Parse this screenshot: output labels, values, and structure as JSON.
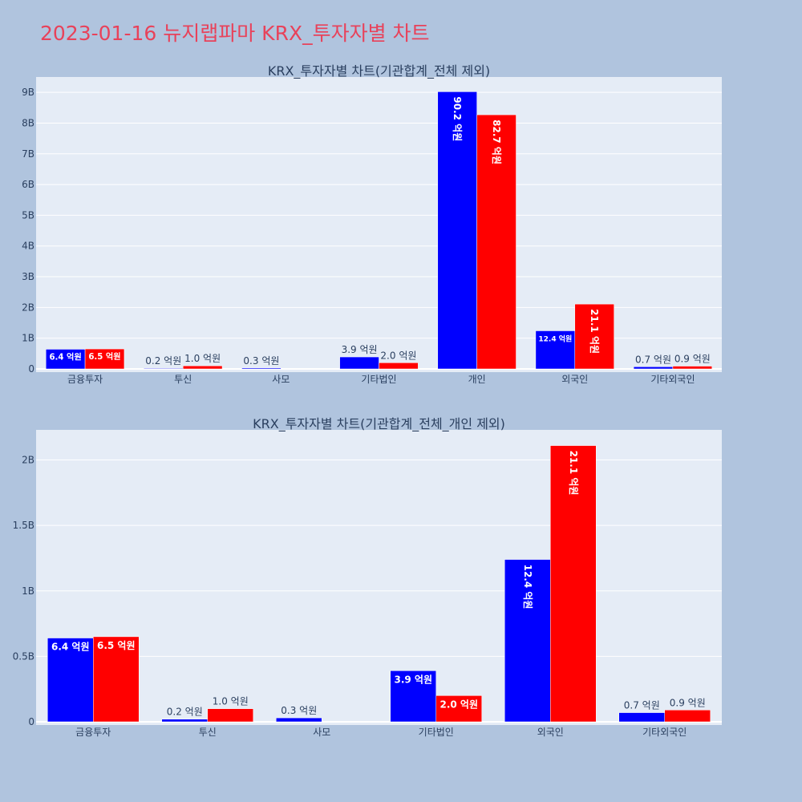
{
  "page_title": "2023-01-16 뉴지랩파마 KRX_투자자별 차트",
  "colors": {
    "background": "#b0c4de",
    "plot_bg": "#e5ecf6",
    "series_1": "#0000ff",
    "series_2": "#ff0000",
    "title": "#e8425a"
  },
  "chart_data": [
    {
      "type": "bar",
      "title": "KRX_투자자별 차트(기관합계_전체 제외)",
      "categories": [
        "금융투자",
        "투신",
        "사모",
        "기타법인",
        "개인",
        "외국인",
        "기타외국인"
      ],
      "ylim": [
        0,
        9500000000
      ],
      "yticks": [
        0,
        1000000000,
        2000000000,
        3000000000,
        4000000000,
        5000000000,
        6000000000,
        7000000000,
        8000000000,
        9000000000
      ],
      "ytick_labels": [
        "0",
        "1B",
        "2B",
        "3B",
        "4B",
        "5B",
        "6B",
        "7B",
        "8B",
        "9B"
      ],
      "grid": true,
      "series": [
        {
          "color": "#0000ff",
          "values": [
            640000000,
            20000000,
            30000000,
            390000000,
            9020000000,
            1240000000,
            70000000
          ],
          "labels": [
            "6.4 억원",
            "0.2 억원",
            "0.3 억원",
            "3.9 억원",
            "90.2 억원",
            "12.4 억원",
            "0.7 억원"
          ]
        },
        {
          "color": "#ff0000",
          "values": [
            650000000,
            100000000,
            0,
            200000000,
            8270000000,
            2110000000,
            90000000
          ],
          "labels": [
            "6.5 억원",
            "1.0 억원",
            "",
            "2.0 억원",
            "82.7 억원",
            "21.1 억원",
            "0.9 억원"
          ]
        }
      ]
    },
    {
      "type": "bar",
      "title": "KRX_투자자별 차트(기관합계_전체_개인 제외)",
      "categories": [
        "금융투자",
        "투신",
        "사모",
        "기타법인",
        "외국인",
        "기타외국인"
      ],
      "ylim": [
        0,
        2230000000
      ],
      "yticks": [
        0,
        500000000,
        1000000000,
        1500000000,
        2000000000
      ],
      "ytick_labels": [
        "0",
        "0.5B",
        "1B",
        "1.5B",
        "2B"
      ],
      "grid": true,
      "series": [
        {
          "color": "#0000ff",
          "values": [
            640000000,
            20000000,
            30000000,
            390000000,
            1240000000,
            70000000
          ],
          "labels": [
            "6.4 억원",
            "0.2 억원",
            "0.3 억원",
            "3.9 억원",
            "12.4 억원",
            "0.7 억원"
          ]
        },
        {
          "color": "#ff0000",
          "values": [
            650000000,
            100000000,
            0,
            200000000,
            2110000000,
            90000000
          ],
          "labels": [
            "6.5 억원",
            "1.0 억원",
            "",
            "2.0 억원",
            "21.1 억원",
            "0.9 억원"
          ]
        }
      ]
    }
  ]
}
